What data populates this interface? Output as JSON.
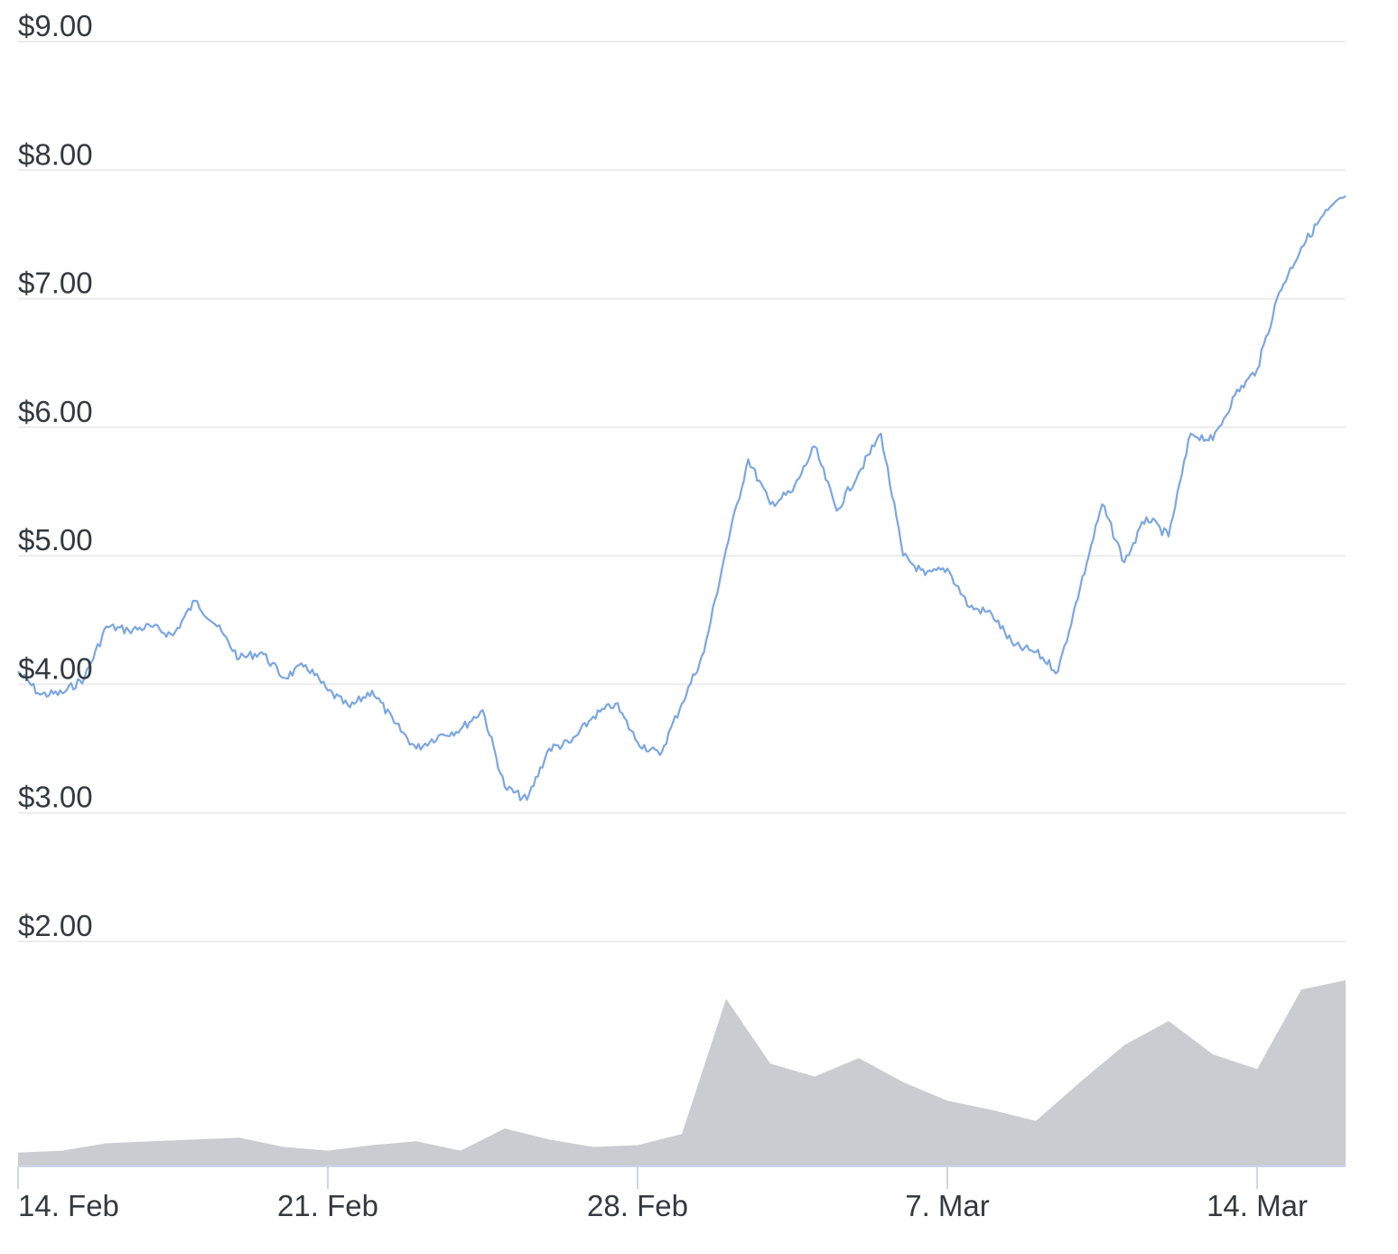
{
  "chart_data": {
    "type": "line",
    "title": "",
    "xlabel": "",
    "ylabel": "",
    "x_range": [
      "2022-02-14",
      "2022-03-16"
    ],
    "y_range": [
      2.0,
      9.0
    ],
    "x_ticks": [
      {
        "label": "14. Feb",
        "date": "2022-02-14"
      },
      {
        "label": "21. Feb",
        "date": "2022-02-21"
      },
      {
        "label": "28. Feb",
        "date": "2022-02-28"
      },
      {
        "label": "7. Mar",
        "date": "2022-03-07"
      },
      {
        "label": "14. Mar",
        "date": "2022-03-14"
      }
    ],
    "y_ticks": [
      {
        "label": "$9.00",
        "value": 9
      },
      {
        "label": "$8.00",
        "value": 8
      },
      {
        "label": "$7.00",
        "value": 7
      },
      {
        "label": "$6.00",
        "value": 6
      },
      {
        "label": "$5.00",
        "value": 5
      },
      {
        "label": "$4.00",
        "value": 4
      },
      {
        "label": "$3.00",
        "value": 3
      },
      {
        "label": "$2.00",
        "value": 2
      }
    ],
    "grid": true,
    "legend": "none",
    "colors": {
      "price_line": "#7ba6e3",
      "volume_bars": "#cbccd2",
      "grid": "#ececef",
      "axis": "#ccd6eb",
      "text": "#333940"
    },
    "price_series": [
      [
        "2022-02-14",
        4.1
      ],
      [
        "2022-02-14T12:00",
        3.92
      ],
      [
        "2022-02-15",
        3.93
      ],
      [
        "2022-02-15T12:00",
        4.05
      ],
      [
        "2022-02-16",
        4.45
      ],
      [
        "2022-02-16T12:00",
        4.42
      ],
      [
        "2022-02-17",
        4.45
      ],
      [
        "2022-02-17T12:00",
        4.38
      ],
      [
        "2022-02-18",
        4.65
      ],
      [
        "2022-02-18T12:00",
        4.45
      ],
      [
        "2022-02-19",
        4.2
      ],
      [
        "2022-02-19T12:00",
        4.25
      ],
      [
        "2022-02-20",
        4.05
      ],
      [
        "2022-02-20T12:00",
        4.15
      ],
      [
        "2022-02-21",
        3.95
      ],
      [
        "2022-02-21T12:00",
        3.82
      ],
      [
        "2022-02-22",
        3.95
      ],
      [
        "2022-02-22T12:00",
        3.7
      ],
      [
        "2022-02-23",
        3.5
      ],
      [
        "2022-02-23T12:00",
        3.6
      ],
      [
        "2022-02-24",
        3.65
      ],
      [
        "2022-02-24T12:00",
        3.8
      ],
      [
        "2022-02-25",
        3.2
      ],
      [
        "2022-02-25T12:00",
        3.1
      ],
      [
        "2022-02-26",
        3.5
      ],
      [
        "2022-02-26T12:00",
        3.55
      ],
      [
        "2022-02-27",
        3.75
      ],
      [
        "2022-02-27T12:00",
        3.85
      ],
      [
        "2022-02-28",
        3.55
      ],
      [
        "2022-02-28T12:00",
        3.45
      ],
      [
        "2022-03-01",
        3.85
      ],
      [
        "2022-03-01T12:00",
        4.25
      ],
      [
        "2022-03-02",
        5.05
      ],
      [
        "2022-03-02T12:00",
        5.75
      ],
      [
        "2022-03-03",
        5.4
      ],
      [
        "2022-03-03T12:00",
        5.5
      ],
      [
        "2022-03-04",
        5.85
      ],
      [
        "2022-03-04T12:00",
        5.35
      ],
      [
        "2022-03-05",
        5.65
      ],
      [
        "2022-03-05T12:00",
        5.95
      ],
      [
        "2022-03-06",
        5.0
      ],
      [
        "2022-03-06T12:00",
        4.85
      ],
      [
        "2022-03-07",
        4.9
      ],
      [
        "2022-03-07T12:00",
        4.6
      ],
      [
        "2022-03-08",
        4.55
      ],
      [
        "2022-03-08T12:00",
        4.3
      ],
      [
        "2022-03-09",
        4.25
      ],
      [
        "2022-03-09T12:00",
        4.1
      ],
      [
        "2022-03-10",
        4.75
      ],
      [
        "2022-03-10T12:00",
        5.4
      ],
      [
        "2022-03-11",
        4.95
      ],
      [
        "2022-03-11T12:00",
        5.3
      ],
      [
        "2022-03-12",
        5.15
      ],
      [
        "2022-03-12T12:00",
        5.95
      ],
      [
        "2022-03-13",
        5.9
      ],
      [
        "2022-03-13T12:00",
        6.25
      ],
      [
        "2022-03-14",
        6.45
      ],
      [
        "2022-03-14T12:00",
        7.05
      ],
      [
        "2022-03-15",
        7.4
      ],
      [
        "2022-03-15T12:00",
        7.65
      ],
      [
        "2022-03-16",
        7.8
      ]
    ],
    "volume_relative": [
      [
        "2022-02-14",
        0.07
      ],
      [
        "2022-02-15",
        0.08
      ],
      [
        "2022-02-16",
        0.12
      ],
      [
        "2022-02-17",
        0.13
      ],
      [
        "2022-02-18",
        0.14
      ],
      [
        "2022-02-19",
        0.15
      ],
      [
        "2022-02-20",
        0.1
      ],
      [
        "2022-02-21",
        0.08
      ],
      [
        "2022-02-22",
        0.11
      ],
      [
        "2022-02-23",
        0.13
      ],
      [
        "2022-02-24",
        0.08
      ],
      [
        "2022-02-25",
        0.2
      ],
      [
        "2022-02-26",
        0.14
      ],
      [
        "2022-02-27",
        0.1
      ],
      [
        "2022-02-28",
        0.11
      ],
      [
        "2022-03-01",
        0.17
      ],
      [
        "2022-03-02",
        0.9
      ],
      [
        "2022-03-03",
        0.55
      ],
      [
        "2022-03-04",
        0.48
      ],
      [
        "2022-03-05",
        0.58
      ],
      [
        "2022-03-06",
        0.45
      ],
      [
        "2022-03-07",
        0.35
      ],
      [
        "2022-03-08",
        0.3
      ],
      [
        "2022-03-09",
        0.24
      ],
      [
        "2022-03-10",
        0.45
      ],
      [
        "2022-03-11",
        0.65
      ],
      [
        "2022-03-12",
        0.78
      ],
      [
        "2022-03-13",
        0.6
      ],
      [
        "2022-03-14",
        0.52
      ],
      [
        "2022-03-15",
        0.95
      ],
      [
        "2022-03-16",
        1.0
      ]
    ]
  }
}
